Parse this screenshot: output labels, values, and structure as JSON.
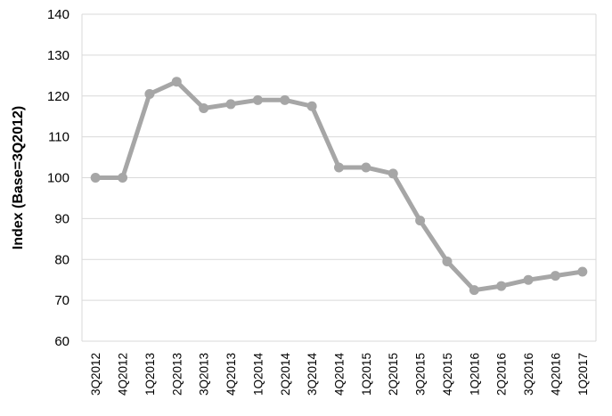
{
  "chart_data": {
    "type": "line",
    "title": "",
    "xlabel": "",
    "ylabel": "Index (Base=3Q2012)",
    "ylim": [
      60,
      140
    ],
    "yticks": [
      60,
      70,
      80,
      90,
      100,
      110,
      120,
      130,
      140
    ],
    "grid": "horizontal",
    "categories": [
      "3Q2012",
      "4Q2012",
      "1Q2013",
      "2Q2013",
      "3Q2013",
      "4Q2013",
      "1Q2014",
      "2Q2014",
      "3Q2014",
      "4Q2014",
      "1Q2015",
      "2Q2015",
      "3Q2015",
      "4Q2015",
      "1Q2016",
      "2Q2016",
      "3Q2016",
      "4Q2016",
      "1Q2017"
    ],
    "series": [
      {
        "values": [
          100,
          100,
          120.5,
          123.5,
          117,
          118,
          119,
          119,
          117.5,
          102.5,
          102.5,
          101,
          89.5,
          79.5,
          72.5,
          73.5,
          75,
          76,
          77
        ],
        "color": "#a6a6a6"
      }
    ]
  }
}
